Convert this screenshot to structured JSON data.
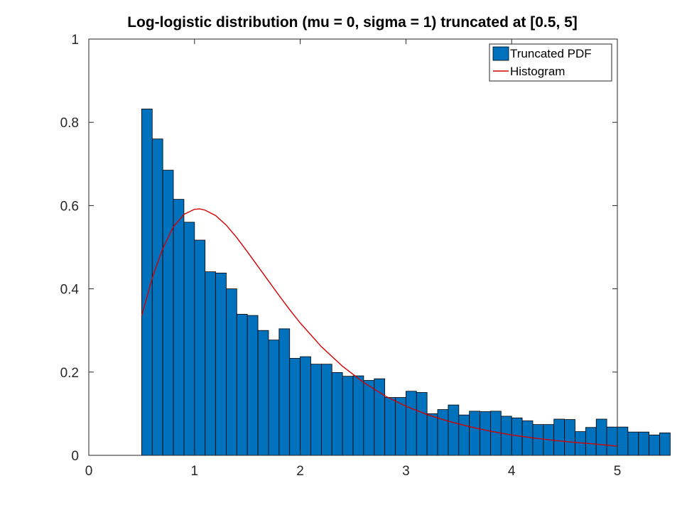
{
  "chart_data": {
    "type": "bar",
    "title": "Log-logistic distribution (mu = 0, sigma = 1) truncated at [0.5, 5]",
    "xlabel": "",
    "ylabel": "",
    "xlim": [
      0,
      5
    ],
    "ylim": [
      0,
      1
    ],
    "x_ticks": [
      0,
      1,
      2,
      3,
      4,
      5
    ],
    "y_ticks": [
      0,
      0.2,
      0.4,
      0.6,
      0.8,
      1
    ],
    "x_tick_labels": [
      "0",
      "1",
      "2",
      "3",
      "4",
      "5"
    ],
    "y_tick_labels": [
      "0",
      "0.2",
      "0.4",
      "0.6",
      "0.8",
      "1"
    ],
    "grid": false,
    "legend_position": "top-right",
    "legend": [
      {
        "label": "Truncated PDF",
        "kind": "patch",
        "color": "#0072BD"
      },
      {
        "label": "Histogram",
        "kind": "line",
        "color": "#D40000"
      }
    ],
    "series": [
      {
        "name": "Truncated PDF",
        "type": "bar",
        "color": "#0072BD",
        "bin_edges_start": 0.5,
        "bin_width": 0.1,
        "values": [
          0.832,
          0.76,
          0.685,
          0.615,
          0.56,
          0.517,
          0.441,
          0.438,
          0.4,
          0.339,
          0.336,
          0.3,
          0.277,
          0.304,
          0.233,
          0.237,
          0.219,
          0.219,
          0.199,
          0.19,
          0.191,
          0.18,
          0.184,
          0.139,
          0.139,
          0.154,
          0.151,
          0.1,
          0.11,
          0.121,
          0.097,
          0.106,
          0.105,
          0.106,
          0.094,
          0.09,
          0.083,
          0.074,
          0.074,
          0.087,
          0.086,
          0.057,
          0.067,
          0.087,
          0.068,
          0.068,
          0.056,
          0.056,
          0.049,
          0.054
        ]
      },
      {
        "name": "Histogram",
        "type": "line",
        "color": "#D40000",
        "x": [
          0.5,
          0.6,
          0.7,
          0.8,
          0.9,
          1.0,
          1.05,
          1.1,
          1.2,
          1.3,
          1.4,
          1.5,
          1.6,
          1.7,
          1.8,
          1.9,
          2.0,
          2.2,
          2.4,
          2.6,
          2.8,
          3.0,
          3.2,
          3.4,
          3.6,
          3.8,
          4.0,
          4.2,
          4.4,
          4.6,
          4.8,
          5.0
        ],
        "y": [
          0.335,
          0.426,
          0.497,
          0.549,
          0.579,
          0.591,
          0.592,
          0.589,
          0.576,
          0.553,
          0.523,
          0.489,
          0.454,
          0.419,
          0.384,
          0.35,
          0.318,
          0.261,
          0.214,
          0.175,
          0.143,
          0.118,
          0.098,
          0.082,
          0.069,
          0.058,
          0.049,
          0.042,
          0.036,
          0.031,
          0.027,
          0.022
        ]
      }
    ]
  }
}
